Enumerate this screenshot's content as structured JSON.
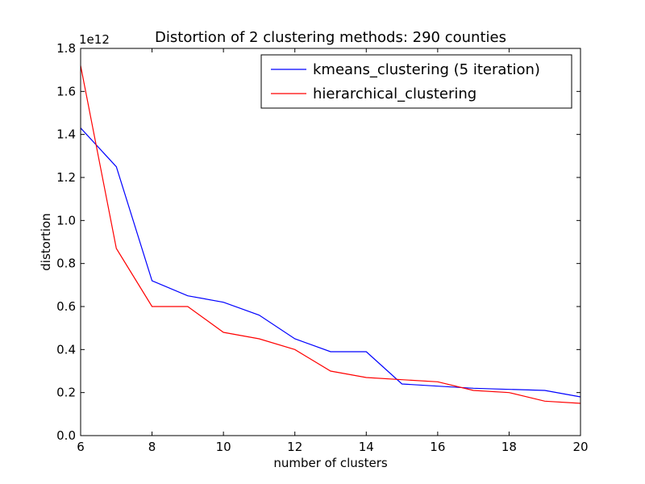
{
  "chart_data": {
    "type": "line",
    "title": "Distortion of 2 clustering methods: 290 counties",
    "xlabel": "number of clusters",
    "ylabel": "distortion",
    "y_multiplier_label": "1e12",
    "xlim": [
      6,
      20
    ],
    "ylim": [
      0.0,
      1.8
    ],
    "x_ticks": [
      "6",
      "8",
      "10",
      "12",
      "14",
      "16",
      "18",
      "20"
    ],
    "y_ticks": [
      "0.0",
      "0.2",
      "0.4",
      "0.6",
      "0.8",
      "1.0",
      "1.2",
      "1.4",
      "1.6",
      "1.8"
    ],
    "grid": false,
    "legend_position": "top-right",
    "x": [
      6,
      7,
      8,
      9,
      10,
      11,
      12,
      13,
      14,
      15,
      16,
      17,
      18,
      19,
      20
    ],
    "series": [
      {
        "name": "kmeans_clustering (5 iteration)",
        "color": "#0000ff",
        "values": [
          1.43,
          1.25,
          0.72,
          0.65,
          0.62,
          0.56,
          0.45,
          0.39,
          0.39,
          0.24,
          0.23,
          0.22,
          0.215,
          0.21,
          0.18
        ]
      },
      {
        "name": "hierarchical_clustering",
        "color": "#ff0000",
        "values": [
          1.72,
          0.87,
          0.6,
          0.6,
          0.48,
          0.45,
          0.4,
          0.3,
          0.27,
          0.26,
          0.25,
          0.21,
          0.2,
          0.16,
          0.15
        ]
      }
    ]
  }
}
